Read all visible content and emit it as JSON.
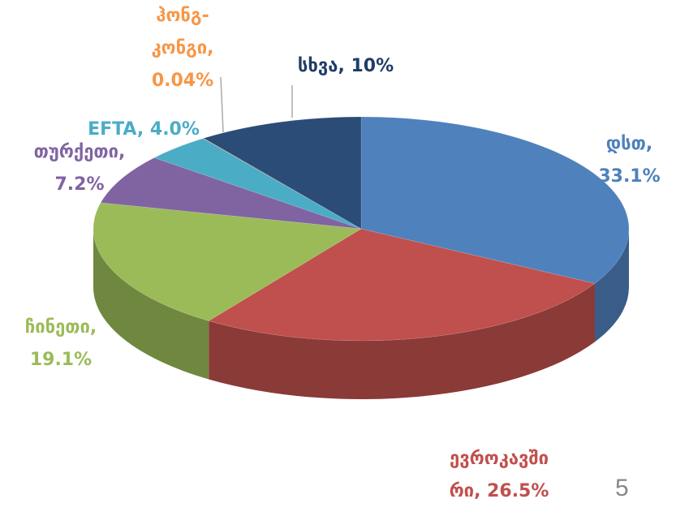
{
  "chart_data": {
    "type": "pie",
    "categories": [
      "დსთ",
      "ევროკავშირი",
      "ჩინეთი",
      "თურქეთი",
      "EFTA",
      "ჰონგ-კონგი",
      "სხვა"
    ],
    "values": [
      33.1,
      26.5,
      19.1,
      7.2,
      4.0,
      0.04,
      10
    ],
    "value_labels": [
      "დსთ, 33.1%",
      "ევროკავშირი, 26.5%",
      "ჩინეთი, 19.1%",
      "თურქეთი, 7.2%",
      "EFTA, 4.0%",
      "ჰონგ-კონგი, 0.04%",
      "სხვა, 10%"
    ],
    "colors": [
      "#4f81bd",
      "#c0504d",
      "#9bbb59",
      "#8064a2",
      "#4bacc6",
      "#f79646",
      "#2b4c77"
    ],
    "label_colors": [
      "#4f81bd",
      "#c0504d",
      "#9bbb59",
      "#8064a2",
      "#4bacc6",
      "#f79646",
      "#1f3d66"
    ]
  },
  "slide_number": "5"
}
